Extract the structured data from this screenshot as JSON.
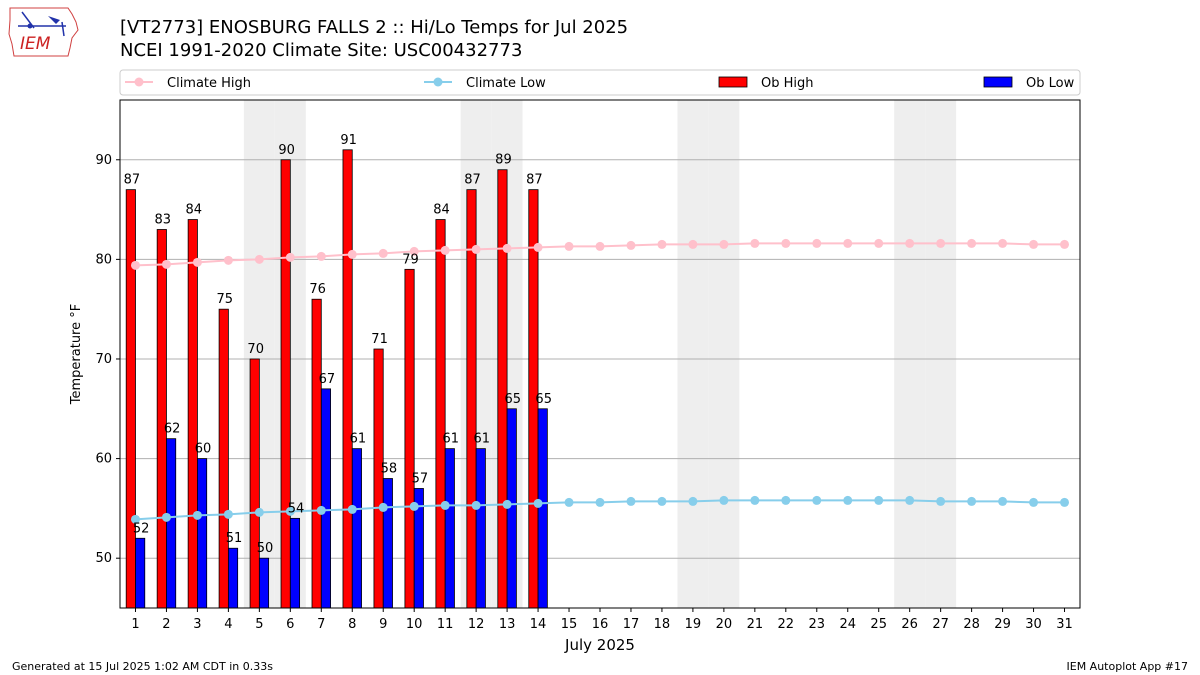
{
  "logo_text": "IEM",
  "title_line1": "[VT2773] ENOSBURG FALLS 2 :: Hi/Lo Temps for Jul 2025",
  "title_line2": "NCEI 1991-2020 Climate Site: USC00432773",
  "footer_left": "Generated at 15 Jul 2025 1:02 AM CDT in 0.33s",
  "footer_right": "IEM Autoplot App #17",
  "colors": {
    "ob_high": "#ff0000",
    "ob_low": "#0000ff",
    "climate_high": "#ffc0cb",
    "climate_low": "#87ceeb",
    "weekend_shade": "#eeeeee",
    "grid": "#b0b0b0"
  },
  "chart_data": {
    "type": "bar",
    "xlabel": "July 2025",
    "ylabel": "Temperature °F",
    "ylim": [
      45,
      96
    ],
    "yticks": [
      50,
      60,
      70,
      80,
      90
    ],
    "grid": "horizontal",
    "legend_position": "top",
    "days": [
      1,
      2,
      3,
      4,
      5,
      6,
      7,
      8,
      9,
      10,
      11,
      12,
      13,
      14,
      15,
      16,
      17,
      18,
      19,
      20,
      21,
      22,
      23,
      24,
      25,
      26,
      27,
      28,
      29,
      30,
      31
    ],
    "weekend_days": [
      5,
      6,
      12,
      13,
      19,
      20,
      26,
      27
    ],
    "series": [
      {
        "name": "Climate High",
        "kind": "line",
        "values": [
          79.4,
          79.5,
          79.7,
          79.9,
          80.0,
          80.2,
          80.3,
          80.5,
          80.6,
          80.8,
          80.9,
          81.0,
          81.1,
          81.2,
          81.3,
          81.3,
          81.4,
          81.5,
          81.5,
          81.5,
          81.6,
          81.6,
          81.6,
          81.6,
          81.6,
          81.6,
          81.6,
          81.6,
          81.6,
          81.5,
          81.5
        ]
      },
      {
        "name": "Climate Low",
        "kind": "line",
        "values": [
          53.9,
          54.1,
          54.3,
          54.4,
          54.6,
          54.7,
          54.8,
          54.9,
          55.1,
          55.2,
          55.3,
          55.3,
          55.4,
          55.5,
          55.6,
          55.6,
          55.7,
          55.7,
          55.7,
          55.8,
          55.8,
          55.8,
          55.8,
          55.8,
          55.8,
          55.8,
          55.7,
          55.7,
          55.7,
          55.6,
          55.6
        ]
      },
      {
        "name": "Ob High",
        "kind": "bar",
        "values": [
          87,
          83,
          84,
          75,
          70,
          90,
          76,
          91,
          71,
          79,
          84,
          87,
          89,
          87
        ]
      },
      {
        "name": "Ob Low",
        "kind": "bar",
        "values": [
          52,
          62,
          60,
          51,
          50,
          54,
          67,
          61,
          58,
          57,
          61,
          61,
          65,
          65
        ]
      }
    ]
  }
}
